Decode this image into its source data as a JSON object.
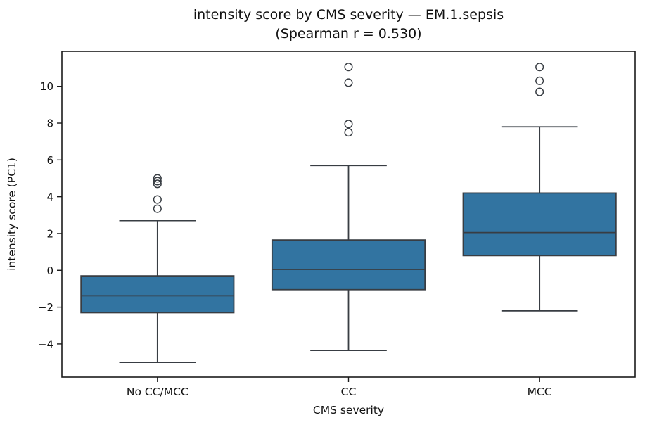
{
  "title": {
    "line1": "intensity score by CMS severity — EM.1.sepsis",
    "line2": "(Spearman r = 0.530)"
  },
  "chart_data": {
    "type": "box",
    "title": "intensity score by CMS severity — EM.1.sepsis",
    "subtitle": "(Spearman r = 0.530)",
    "xlabel": "CMS severity",
    "ylabel": "intensity score (PC1)",
    "ylim": [
      -5.8,
      11.9
    ],
    "yticks": [
      -4,
      -2,
      0,
      2,
      4,
      6,
      8,
      10
    ],
    "grid": false,
    "legend": "none",
    "categories": [
      "No CC/MCC",
      "CC",
      "MCC"
    ],
    "colors": {
      "box_fill": "#3274A1",
      "box_line": "#383D43",
      "spine": "#1a1a1a",
      "text": "#111111"
    },
    "series": [
      {
        "category": "No CC/MCC",
        "whisker_low": -5.0,
        "q1": -2.3,
        "median": -1.38,
        "q3": -0.3,
        "whisker_high": 2.7,
        "outliers": [
          3.35,
          3.85,
          4.7,
          4.85,
          5.0
        ]
      },
      {
        "category": "CC",
        "whisker_low": -4.35,
        "q1": -1.05,
        "median": 0.05,
        "q3": 1.65,
        "whisker_high": 5.7,
        "outliers": [
          7.5,
          7.95,
          10.2,
          11.05
        ]
      },
      {
        "category": "MCC",
        "whisker_low": -2.2,
        "q1": 0.8,
        "median": 2.05,
        "q3": 4.2,
        "whisker_high": 7.8,
        "outliers": [
          9.7,
          10.3,
          11.05
        ]
      }
    ]
  }
}
